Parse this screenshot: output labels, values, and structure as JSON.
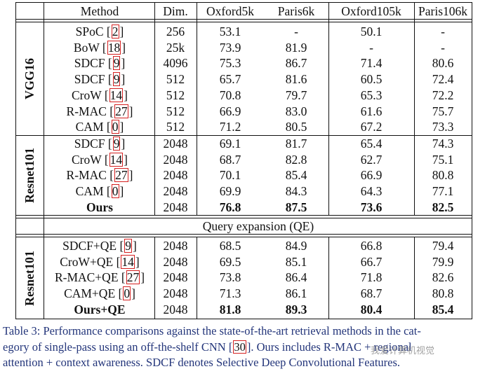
{
  "header": {
    "method": "Method",
    "dim": "Dim.",
    "oxford5k": "Oxford5k",
    "paris6k": "Paris6k",
    "oxford105k": "Oxford105k",
    "paris106k": "Paris106k"
  },
  "groups": {
    "vgg": "VGG16",
    "resnet1": "Resnet101",
    "resnet2": "Resnet101"
  },
  "qe_label": "Query expansion (QE)",
  "vgg_rows": [
    {
      "name": "SPoC",
      "ref": "2",
      "dim": "256",
      "o5": "53.1",
      "p6": "-",
      "o105": "50.1",
      "p106": "-"
    },
    {
      "name": "BoW",
      "ref": "18",
      "dim": "25k",
      "o5": "73.9",
      "p6": "81.9",
      "o105": "-",
      "p106": "-"
    },
    {
      "name": "SDCF",
      "ref": "9",
      "dim": "4096",
      "o5": "75.3",
      "p6": "86.7",
      "o105": "71.4",
      "p106": "80.6"
    },
    {
      "name": "SDCF",
      "ref": "9",
      "dim": "512",
      "o5": "65.7",
      "p6": "81.6",
      "o105": "60.5",
      "p106": "72.4"
    },
    {
      "name": "CroW",
      "ref": "14",
      "dim": "512",
      "o5": "70.8",
      "p6": "79.7",
      "o105": "65.3",
      "p106": "72.2"
    },
    {
      "name": "R-MAC",
      "ref": "27",
      "dim": "512",
      "o5": "66.9",
      "p6": "83.0",
      "o105": "61.6",
      "p106": "75.7"
    },
    {
      "name": "CAM",
      "ref": "0",
      "dim": "512",
      "o5": "71.2",
      "p6": "80.5",
      "o105": "67.2",
      "p106": "73.3"
    }
  ],
  "resnet_rows": [
    {
      "name": "SDCF",
      "ref": "9",
      "dim": "2048",
      "o5": "69.1",
      "p6": "81.7",
      "o105": "65.4",
      "p106": "74.3"
    },
    {
      "name": "CroW",
      "ref": "14",
      "dim": "2048",
      "o5": "68.7",
      "p6": "82.8",
      "o105": "62.7",
      "p106": "75.1"
    },
    {
      "name": "R-MAC",
      "ref": "27",
      "dim": "2048",
      "o5": "70.1",
      "p6": "85.4",
      "o105": "66.9",
      "p106": "80.8"
    },
    {
      "name": "CAM",
      "ref": "0",
      "dim": "2048",
      "o5": "69.9",
      "p6": "84.3",
      "o105": "64.3",
      "p106": "77.1"
    },
    {
      "name": "Ours",
      "ref": "",
      "dim": "2048",
      "o5": "76.8",
      "p6": "87.5",
      "o105": "73.6",
      "p106": "82.5"
    }
  ],
  "qe_rows": [
    {
      "name": "SDCF+QE",
      "ref": "9",
      "dim": "2048",
      "o5": "68.5",
      "p6": "84.9",
      "o105": "66.8",
      "p106": "79.4"
    },
    {
      "name": "CroW+QE",
      "ref": "14",
      "dim": "2048",
      "o5": "69.5",
      "p6": "85.1",
      "o105": "66.7",
      "p106": "79.9"
    },
    {
      "name": "R-MAC+QE",
      "ref": "27",
      "dim": "2048",
      "o5": "73.8",
      "p6": "86.4",
      "o105": "71.8",
      "p106": "82.6"
    },
    {
      "name": "CAM+QE",
      "ref": "0",
      "dim": "2048",
      "o5": "71.3",
      "p6": "86.1",
      "o105": "68.7",
      "p106": "80.8"
    },
    {
      "name": "Ours+QE",
      "ref": "",
      "dim": "2048",
      "o5": "81.8",
      "p6": "89.3",
      "o105": "80.4",
      "p106": "85.4"
    }
  ],
  "caption": {
    "l1": "Table 3: Performance comparisons against the state-of-the-art retrieval methods in the cat-",
    "l2a": "egory of single-pass using an off-the-shelf CNN [",
    "l2ref": "30",
    "l2b": "]. Ours includes R-MAC + regional",
    "l3": "attention + context awareness. SDCF denotes Selective Deep Convolutional Features."
  },
  "watermark": "我爱计算机视觉"
}
